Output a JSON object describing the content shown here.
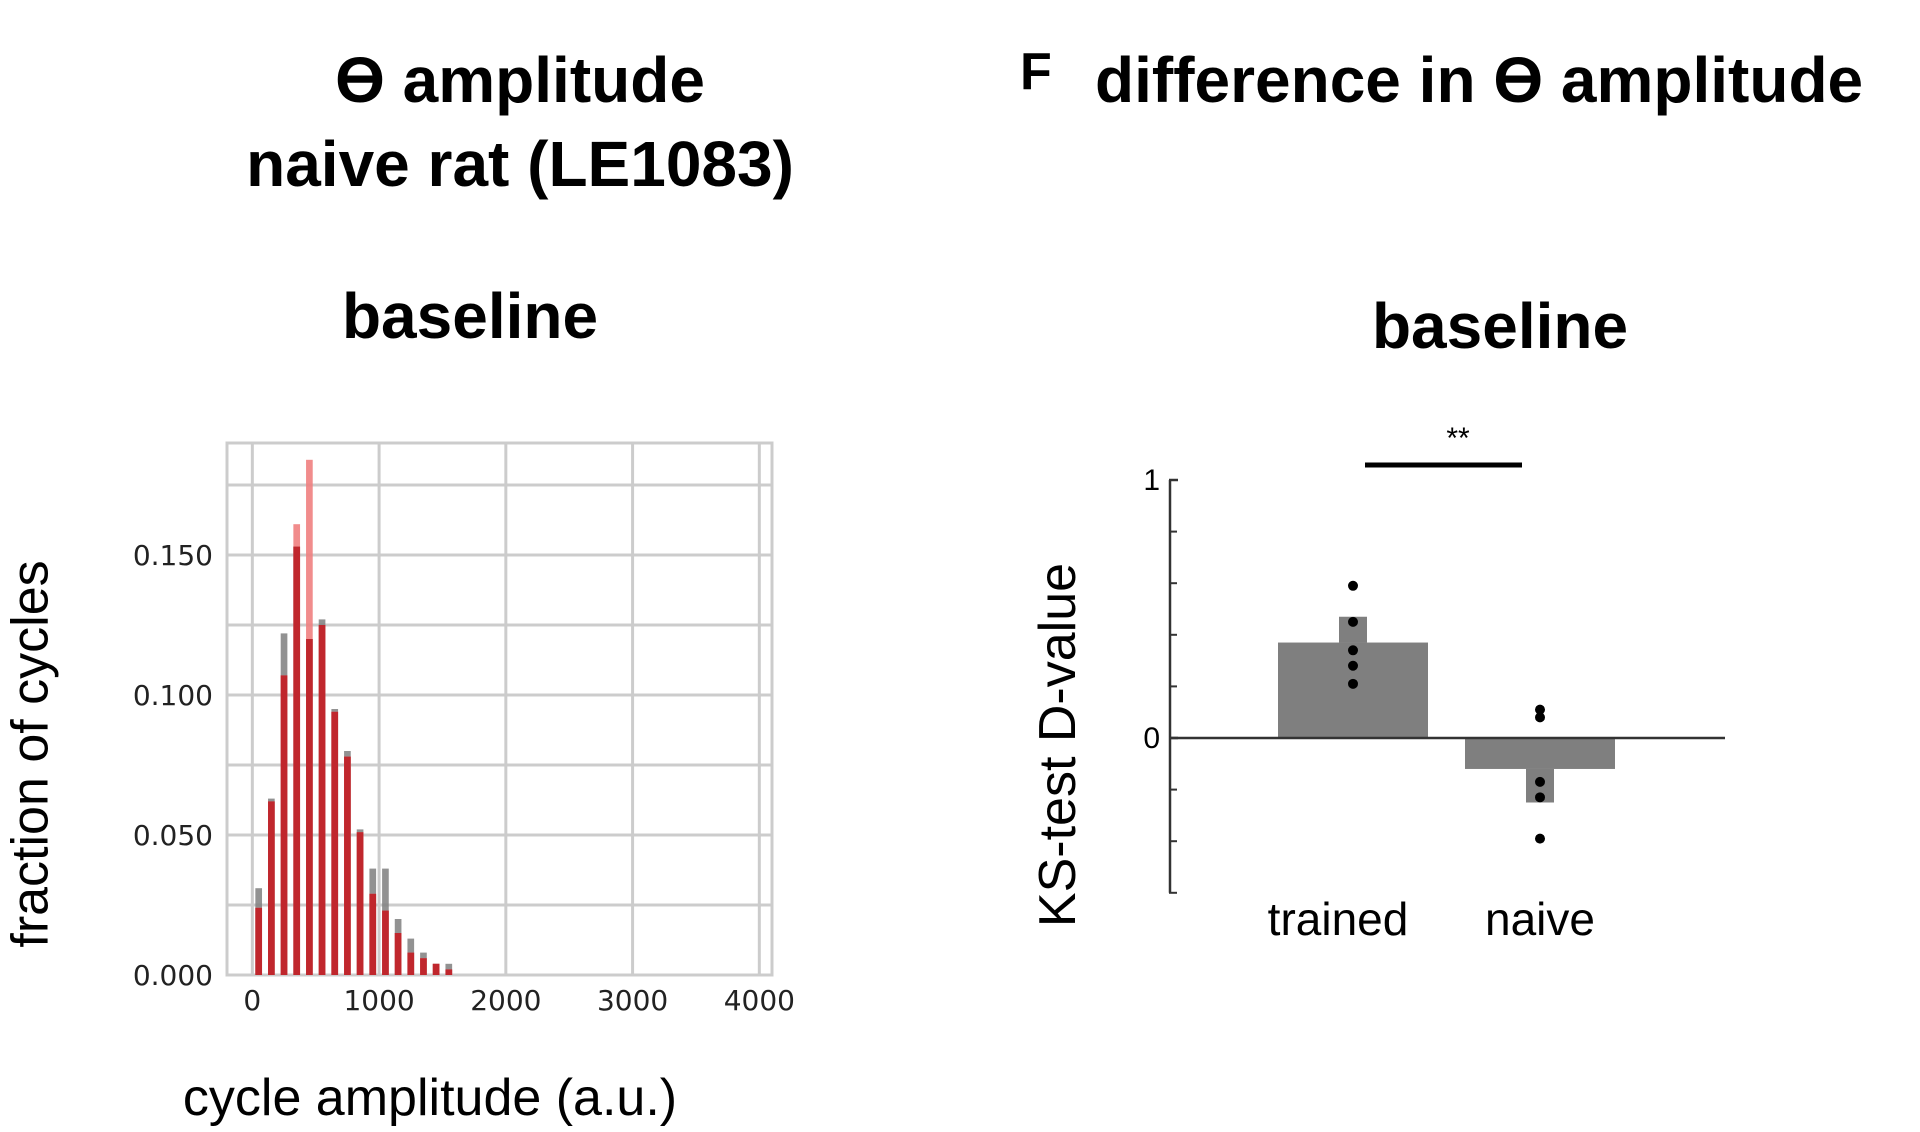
{
  "panel_e": {
    "title_line1": "ϴ amplitude",
    "title_line2": "naive rat (LE1083)",
    "subtitle": "baseline"
  },
  "panel_f": {
    "letter": "F",
    "title": "difference in ϴ amplitude",
    "subtitle": "baseline",
    "significance": "**"
  },
  "colors": {
    "gray_bar": "#7f7f7f",
    "red_bar": "#c0272d",
    "red_light": "#f08080",
    "grid": "#cccccc",
    "axis": "#333333"
  },
  "chart_data": [
    {
      "type": "bar",
      "title": "baseline",
      "xlabel": "cycle amplitude (a.u.)",
      "ylabel": "fraction of cycles",
      "xlim": [
        -200,
        4100
      ],
      "ylim": [
        0,
        0.19
      ],
      "xticks": [
        0,
        1000,
        2000,
        3000,
        4000
      ],
      "xtick_labels": [
        "0",
        "1000",
        "2000",
        "3000",
        "4000"
      ],
      "yticks": [
        0,
        0.05,
        0.1,
        0.15
      ],
      "ytick_labels": [
        "0.000",
        "0.050",
        "0.100",
        "0.150"
      ],
      "grid": true,
      "bin_width": 100,
      "x": [
        50,
        150,
        250,
        350,
        450,
        550,
        650,
        750,
        850,
        950,
        1050,
        1150,
        1250,
        1350,
        1450,
        1550,
        1650
      ],
      "series": [
        {
          "name": "gray",
          "color": "#7f7f7f",
          "values": [
            0.031,
            0.063,
            0.122,
            0.153,
            0.12,
            0.127,
            0.095,
            0.08,
            0.052,
            0.038,
            0.038,
            0.02,
            0.013,
            0.008,
            0.004,
            0.004,
            0.0
          ]
        },
        {
          "name": "red",
          "color": "#c0272d",
          "values": [
            0.024,
            0.062,
            0.107,
            0.161,
            0.184,
            0.125,
            0.094,
            0.078,
            0.051,
            0.029,
            0.023,
            0.015,
            0.008,
            0.006,
            0.004,
            0.002,
            0.0
          ]
        }
      ]
    },
    {
      "type": "bar",
      "title": "baseline",
      "xlabel": "",
      "ylabel": "KS-test D-value",
      "ylim": [
        -0.6,
        1.0
      ],
      "yticks": [
        0,
        1
      ],
      "ytick_labels": [
        "0",
        "1"
      ],
      "minor_yticks": [
        -0.6,
        -0.4,
        -0.2,
        0.2,
        0.4,
        0.6,
        0.8
      ],
      "categories": [
        "trained",
        "naive"
      ],
      "values": [
        0.37,
        -0.12
      ],
      "errors": [
        0.1,
        0.13
      ],
      "points": [
        [
          0.59,
          0.45,
          0.34,
          0.28,
          0.21
        ],
        [
          0.11,
          0.08,
          -0.17,
          -0.23,
          -0.39
        ]
      ],
      "significance": {
        "pair": [
          0,
          1
        ],
        "label": "**"
      }
    }
  ]
}
